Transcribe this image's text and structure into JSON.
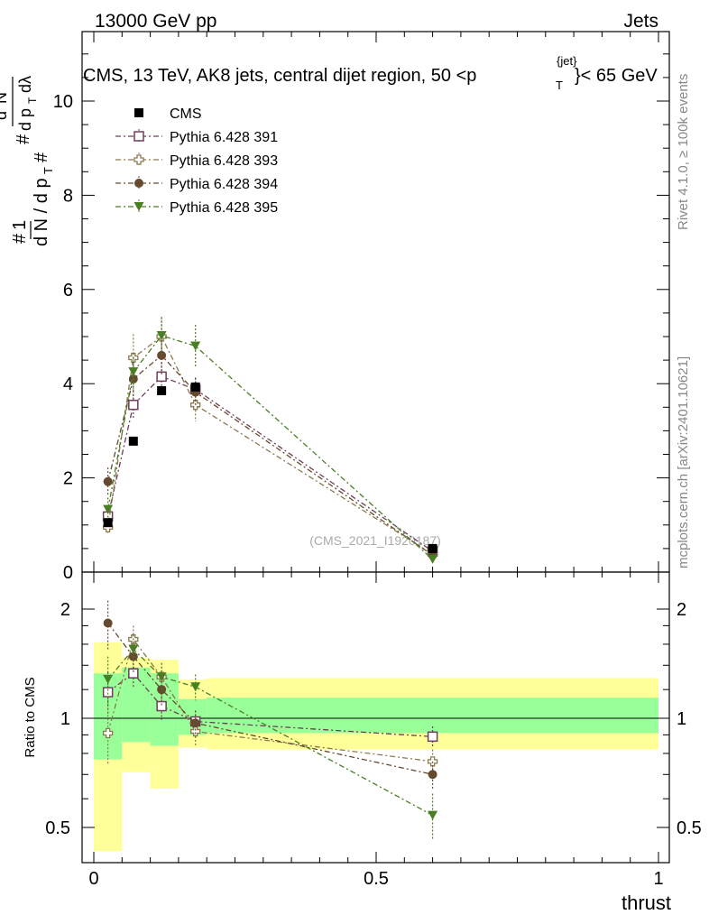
{
  "header": {
    "left": "13000 GeV pp",
    "right": "Jets"
  },
  "side": {
    "rivet": "Rivet 4.1.0, ≥ 100k events",
    "mcplots": "mcplots.cern.ch [arXiv:2401.10621]"
  },
  "chart_data": {
    "type": "scatter",
    "title": "CMS, 13 TeV, AK8 jets, central dijet region, 50 <p_T^{jet}< 65 GeV",
    "title_main": "CMS, 13 TeV, AK8 jets, central dijet region, 50 <p",
    "title_sup": "{jet}",
    "title_sub": "T",
    "title_end": "}< 65 GeV",
    "watermark": "(CMS_2021_I1920187)",
    "xlabel": "thrust",
    "ylabel_ratio": "Ratio to CMS",
    "xlim": [
      0,
      1
    ],
    "ylim_main": [
      0,
      11.5
    ],
    "ylim_ratio": [
      0.43,
      2.3
    ],
    "x_ticks": [
      "0",
      "0.5",
      "1"
    ],
    "y_ticks_main": [
      "0",
      "2",
      "4",
      "6",
      "8",
      "10"
    ],
    "y_ticks_ratio": [
      "0.5",
      "1",
      "2"
    ],
    "data_series": {
      "name": "CMS",
      "x": [
        0.025,
        0.07,
        0.12,
        0.18,
        0.6
      ],
      "y": [
        1.05,
        2.78,
        3.85,
        3.93,
        0.5
      ],
      "bins": [
        [
          0.0,
          0.05
        ],
        [
          0.05,
          0.1
        ],
        [
          0.1,
          0.15
        ],
        [
          0.15,
          0.2
        ],
        [
          0.2,
          1.0
        ]
      ],
      "band_green": [
        [
          0.77,
          1.33
        ],
        [
          0.86,
          1.38
        ],
        [
          0.84,
          1.33
        ],
        [
          0.9,
          1.13
        ],
        [
          0.91,
          1.14
        ]
      ],
      "band_yellow": [
        [
          0.43,
          1.62
        ],
        [
          0.71,
          1.47
        ],
        [
          0.64,
          1.45
        ],
        [
          0.83,
          1.28
        ],
        [
          0.82,
          1.29
        ]
      ]
    },
    "series": [
      {
        "name": "Pythia 6.428 391",
        "color": "#6e3d5b",
        "marker": "open-square",
        "x": [
          0.025,
          0.07,
          0.12,
          0.18,
          0.6
        ],
        "y": [
          1.18,
          3.55,
          4.15,
          3.88,
          0.44
        ],
        "yerr": [
          0.15,
          0.3,
          0.3,
          0.25,
          0.05
        ],
        "ratio": [
          1.18,
          1.33,
          1.08,
          0.98,
          0.89
        ],
        "ratio_err": [
          0.16,
          0.12,
          0.09,
          0.07,
          0.06
        ]
      },
      {
        "name": "Pythia 6.428 393",
        "color": "#8c7a4f",
        "marker": "open-cross",
        "x": [
          0.025,
          0.07,
          0.12,
          0.18,
          0.6
        ],
        "y": [
          0.95,
          4.55,
          5.0,
          3.55,
          0.38
        ],
        "yerr": [
          0.15,
          0.5,
          0.4,
          0.35,
          0.05
        ],
        "ratio": [
          0.91,
          1.65,
          1.3,
          0.92,
          0.76
        ],
        "ratio_err": [
          0.16,
          0.15,
          0.12,
          0.08,
          0.06
        ]
      },
      {
        "name": "Pythia 6.428 394",
        "color": "#654a30",
        "marker": "filled-circle",
        "x": [
          0.025,
          0.07,
          0.12,
          0.18,
          0.6
        ],
        "y": [
          1.92,
          4.1,
          4.6,
          3.82,
          0.36
        ],
        "yerr": [
          0.3,
          0.45,
          0.4,
          0.3,
          0.05
        ],
        "ratio": [
          1.83,
          1.48,
          1.2,
          0.97,
          0.7
        ],
        "ratio_err": [
          0.28,
          0.15,
          0.12,
          0.08,
          0.06
        ]
      },
      {
        "name": "Pythia 6.428 395",
        "color": "#4a7e25",
        "marker": "filled-triangle-down",
        "x": [
          0.025,
          0.07,
          0.12,
          0.18,
          0.6
        ],
        "y": [
          1.33,
          4.25,
          5.02,
          4.8,
          0.27
        ],
        "yerr": [
          0.25,
          0.4,
          0.4,
          0.45,
          0.04
        ],
        "ratio": [
          1.28,
          1.55,
          1.3,
          1.22,
          0.54
        ],
        "ratio_err": [
          0.2,
          0.15,
          0.12,
          0.1,
          0.08
        ]
      }
    ]
  }
}
